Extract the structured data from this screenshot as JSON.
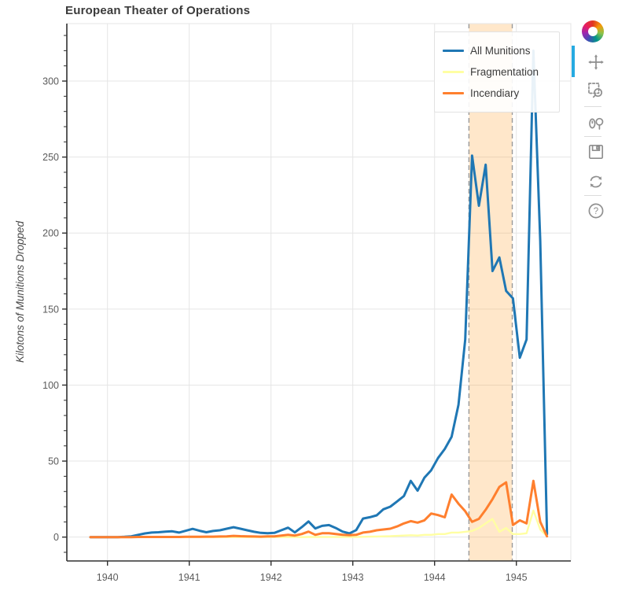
{
  "title": "European Theater of Operations",
  "y_axis_label": "Kilotons of Munitions Dropped",
  "legend": {
    "position": "top_right"
  },
  "toolbar": {
    "logo": "bokeh-logo",
    "tools": [
      {
        "name": "pan",
        "active": true
      },
      {
        "name": "box-zoom",
        "active": false
      },
      {
        "name": "wheel-zoom",
        "active": false
      },
      {
        "name": "save",
        "active": false
      },
      {
        "name": "reset",
        "active": false
      },
      {
        "name": "help",
        "active": false
      }
    ],
    "help_glyph": "?"
  },
  "chart_data": {
    "type": "line",
    "title": "European Theater of Operations",
    "xlabel": "",
    "ylabel": "Kilotons of Munitions Dropped",
    "grid": true,
    "legend_position": "top_right",
    "x_ticks": [
      1940,
      1941,
      1942,
      1943,
      1944,
      1945
    ],
    "y_ticks": [
      0,
      50,
      100,
      150,
      200,
      250,
      300
    ],
    "x_range": [
      1939.503,
      1945.666
    ],
    "y_range": [
      -15.7,
      337.8
    ],
    "band": {
      "x_start": 1944.42,
      "x_end": 1944.95,
      "fill": "rgba(255,166,58,0.27)",
      "edge_color": "#999999",
      "edge_dash": "6 4"
    },
    "months": [
      "1939-10",
      "1939-11",
      "1939-12",
      "1940-01",
      "1940-02",
      "1940-03",
      "1940-04",
      "1940-05",
      "1940-06",
      "1940-07",
      "1940-08",
      "1940-09",
      "1940-10",
      "1940-11",
      "1940-12",
      "1941-01",
      "1941-02",
      "1941-03",
      "1941-04",
      "1941-05",
      "1941-06",
      "1941-07",
      "1941-08",
      "1941-09",
      "1941-10",
      "1941-11",
      "1941-12",
      "1942-01",
      "1942-02",
      "1942-03",
      "1942-04",
      "1942-05",
      "1942-06",
      "1942-07",
      "1942-08",
      "1942-09",
      "1942-10",
      "1942-11",
      "1942-12",
      "1943-01",
      "1943-02",
      "1943-03",
      "1943-04",
      "1943-05",
      "1943-06",
      "1943-07",
      "1943-08",
      "1943-09",
      "1943-10",
      "1943-11",
      "1943-12",
      "1944-01",
      "1944-02",
      "1944-03",
      "1944-04",
      "1944-05",
      "1944-06",
      "1944-07",
      "1944-08",
      "1944-09",
      "1944-10",
      "1944-11",
      "1944-12",
      "1945-01",
      "1945-02",
      "1945-03",
      "1945-04",
      "1945-05"
    ],
    "series": [
      {
        "name": "All Munitions",
        "color": "#1f77b4",
        "line_width": 3,
        "values": [
          0,
          0,
          0,
          0,
          0,
          0.2,
          0.5,
          1.5,
          2.4,
          3,
          3.2,
          3.6,
          3.8,
          3,
          4.2,
          5.4,
          4.2,
          3.2,
          4,
          4.5,
          5.5,
          6.5,
          5.5,
          4.5,
          3.5,
          2.8,
          2.5,
          2.8,
          4.5,
          6.2,
          3.1,
          6.5,
          10.3,
          5.7,
          7.4,
          7.9,
          6,
          3.6,
          2.4,
          4.6,
          12.2,
          13.1,
          14.3,
          18.3,
          20,
          23.5,
          27,
          37,
          30.5,
          39,
          44,
          52,
          58,
          66,
          87,
          130,
          251,
          218,
          245,
          175,
          184,
          162,
          157,
          118,
          130,
          320,
          195,
          2
        ]
      },
      {
        "name": "Fragmentation",
        "color": "#ffffa3",
        "line_width": 2.4,
        "values": [
          0,
          0,
          0,
          0,
          0,
          0,
          0,
          0,
          0,
          0,
          0,
          0,
          0,
          0,
          0,
          0,
          0,
          0,
          0,
          0,
          0,
          0,
          0,
          0,
          0,
          0,
          0,
          0,
          0,
          0,
          0,
          0,
          0.1,
          0.1,
          0.1,
          0.1,
          0.1,
          0.1,
          0.1,
          0.1,
          0.2,
          0.3,
          0.4,
          0.5,
          0.6,
          0.8,
          1,
          1.2,
          1,
          1.5,
          1.5,
          2,
          2,
          3,
          3,
          3.5,
          4,
          6,
          9,
          12,
          3.5,
          6,
          2,
          2,
          2.5,
          17.5,
          5,
          0.5
        ]
      },
      {
        "name": "Incendiary",
        "color": "#ff7f2e",
        "line_width": 3,
        "values": [
          0,
          0,
          0,
          0,
          0,
          0,
          0,
          0.1,
          0.1,
          0.1,
          0.1,
          0.1,
          0.1,
          0.1,
          0.2,
          0.2,
          0.2,
          0.3,
          0.3,
          0.4,
          0.5,
          0.8,
          0.6,
          0.5,
          0.4,
          0.3,
          0.5,
          0.5,
          1,
          1.5,
          1,
          2,
          3.6,
          1.5,
          2.5,
          2.5,
          2,
          1.5,
          1.2,
          1.5,
          3,
          3.5,
          4.5,
          5,
          5.5,
          7,
          9,
          10.5,
          9.5,
          11,
          15.5,
          14.5,
          13,
          28,
          22,
          17,
          10,
          12,
          18,
          25,
          33,
          36,
          8,
          11,
          9,
          37,
          10,
          0.5
        ]
      }
    ]
  }
}
